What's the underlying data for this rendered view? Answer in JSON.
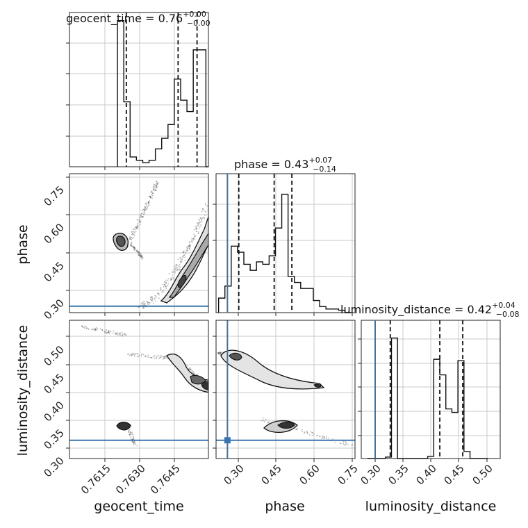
{
  "chart_data": {
    "type": "corner",
    "parameters": [
      "geocent_time",
      "phase",
      "luminosity_distance"
    ],
    "truth": {
      "color": "#3b75af",
      "phase": 0.245,
      "luminosity_distance": 0.313
    },
    "grid": true,
    "panels": {
      "geocent_time_hist": {
        "title": {
          "label": "geocent_time = 0.76",
          "sup": "+0.00",
          "sub": "−0.00"
        },
        "xlim": [
          0.76,
          0.7655
        ],
        "bin_edges": [
          0.7619,
          0.76215,
          0.7624,
          0.76265,
          0.7629,
          0.76315,
          0.7634,
          0.76365,
          0.7639,
          0.76415,
          0.7644,
          0.76465,
          0.7649,
          0.76515,
          0.7654,
          0.7655
        ],
        "counts": [
          180,
          80,
          12,
          8,
          5,
          8,
          22,
          35,
          52,
          108,
          82,
          68,
          144,
          144,
          0
        ],
        "quantiles": [
          0.76225,
          0.7643,
          0.76505
        ],
        "ymax": 190
      },
      "phase_hist": {
        "title": {
          "label": "phase = 0.43",
          "sup": "+0.07",
          "sub": "−0.14"
        },
        "xlim": [
          0.2,
          0.75
        ],
        "bin_edges": [
          0.21,
          0.235,
          0.26,
          0.285,
          0.31,
          0.335,
          0.36,
          0.385,
          0.41,
          0.435,
          0.46,
          0.485,
          0.51,
          0.535,
          0.56,
          0.585,
          0.61,
          0.635,
          0.66,
          0.685,
          0.71,
          0.735
        ],
        "counts": [
          12,
          22,
          55,
          50,
          40,
          35,
          42,
          40,
          47,
          70,
          98,
          30,
          25,
          20,
          20,
          10,
          5,
          3,
          3,
          2,
          0
        ],
        "quantiles": [
          0.29,
          0.43,
          0.5
        ],
        "ymax": 115,
        "xticks": [
          "0.30",
          "0.45",
          "0.60",
          "0.75"
        ],
        "xlabel": "phase"
      },
      "luminosity_distance_hist": {
        "title": {
          "label": "luminosity_distance = 0.42",
          "sup": "+0.04",
          "sub": "−0.08"
        },
        "xlim": [
          0.29,
          0.52
        ],
        "bin_edges": [
          0.3,
          0.31,
          0.32,
          0.33,
          0.34,
          0.35,
          0.36,
          0.37,
          0.38,
          0.39,
          0.4,
          0.41,
          0.42,
          0.43,
          0.44,
          0.45,
          0.46,
          0.47,
          0.48,
          0.49,
          0.5
        ],
        "counts": [
          0,
          0,
          0,
          2,
          170,
          0,
          0,
          0,
          0,
          0,
          3,
          140,
          118,
          70,
          65,
          138,
          10,
          0,
          0,
          0
        ],
        "quantiles": [
          0.338,
          0.42,
          0.458
        ],
        "ymax": 195,
        "xticks": [
          "0.30",
          "0.35",
          "0.40",
          "0.45",
          "0.50"
        ],
        "xlabel": "luminosity_distance"
      },
      "phase_vs_geocent": {
        "xlim": [
          0.76,
          0.7655
        ],
        "ylim": [
          0.22,
          0.76
        ],
        "yticks": [
          "0.30",
          "0.45",
          "0.60",
          "0.75"
        ],
        "ylabel": "phase",
        "clusters": [
          {
            "x": [
              [
                0.76255,
                0.762625
              ],
              [
                0.7625,
                0.7635
              ]
            ],
            "y": [
              [
                0.52,
                0.62
              ],
              [
                0.49,
                0.73
              ]
            ]
          },
          {
            "x": [
              [
                0.7627,
                0.7655
              ]
            ],
            "y": [
              [
                0.24,
                0.62
              ]
            ]
          },
          {
            "x": [
              [
                0.7624,
                0.76245
              ]
            ],
            "y": [
              [
                0.43,
                0.47
              ]
            ]
          }
        ]
      },
      "ld_vs_geocent": {
        "xlim": [
          0.76,
          0.7655
        ],
        "ylim": [
          0.28,
          0.53
        ],
        "xticks": [
          "0.7615",
          "0.7630",
          "0.7645"
        ],
        "yticks": [
          "0.30",
          "0.35",
          "0.40",
          "0.45",
          "0.50"
        ],
        "xlabel": "geocent_time",
        "ylabel": "luminosity_distance"
      },
      "ld_vs_phase": {
        "xlim": [
          0.2,
          0.75
        ],
        "ylim": [
          0.28,
          0.53
        ]
      }
    }
  }
}
